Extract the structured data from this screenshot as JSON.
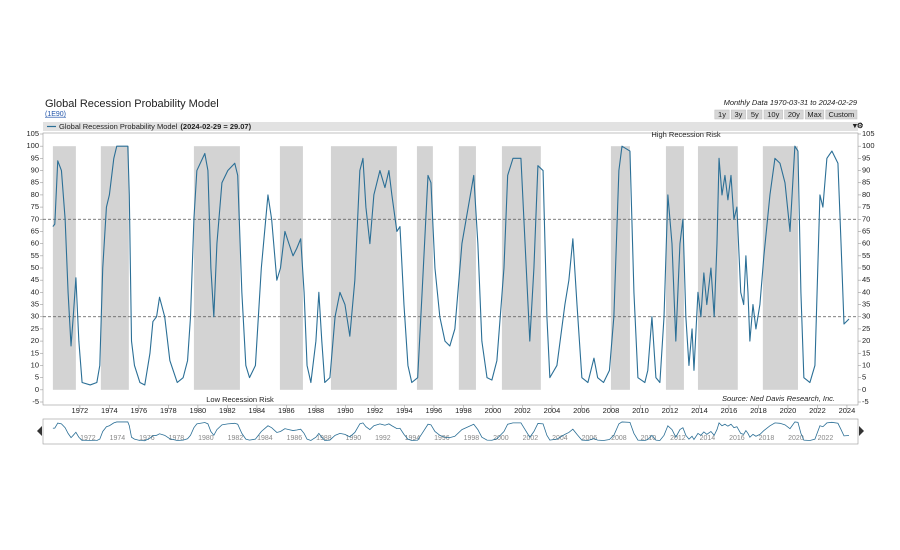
{
  "chart_data": {
    "type": "line",
    "title": "Global Recession Probability Model",
    "subtitle": "(1E90)",
    "date_range": "Monthly Data 1970-03-31 to 2024-02-29",
    "range_buttons": [
      "1y",
      "3y",
      "5y",
      "10y",
      "20y",
      "Max",
      "Custom"
    ],
    "legend_value": "(2024-02-29 = 29.07)",
    "annotations": {
      "high": "High Recession Risk",
      "low": "Low Recession Risk",
      "source": "Source: Ned Davis Research, Inc."
    },
    "xlim": [
      1969.5,
      2024.75
    ],
    "xticks": [
      1972,
      1974,
      1976,
      1978,
      1980,
      1982,
      1984,
      1986,
      1988,
      1990,
      1992,
      1994,
      1996,
      1998,
      2000,
      2002,
      2004,
      2006,
      2008,
      2010,
      2012,
      2014,
      2016,
      2018,
      2020,
      2022,
      2024
    ],
    "ylim": [
      -5,
      105
    ],
    "yticks": [
      -5,
      0,
      5,
      10,
      15,
      20,
      25,
      30,
      35,
      40,
      45,
      50,
      55,
      60,
      65,
      70,
      75,
      80,
      85,
      90,
      95,
      100,
      105
    ],
    "reference_lines": [
      70,
      30
    ],
    "shade_color": "#d3d3d3",
    "shaded_periods": [
      [
        1970.17,
        1971.73
      ],
      [
        1973.42,
        1975.32
      ],
      [
        1979.73,
        1982.85
      ],
      [
        1985.56,
        1987.12
      ],
      [
        1989.02,
        1993.49
      ],
      [
        1994.85,
        1995.93
      ],
      [
        1997.69,
        1998.85
      ],
      [
        2000.61,
        2003.25
      ],
      [
        2008.0,
        2009.29
      ],
      [
        2011.73,
        2012.95
      ],
      [
        2013.9,
        2016.6
      ],
      [
        2018.3,
        2020.68
      ]
    ],
    "x": [
      1970.17,
      1970.3,
      1970.5,
      1970.75,
      1971.0,
      1971.2,
      1971.4,
      1971.55,
      1971.73,
      1971.93,
      1972.15,
      1972.7,
      1973.15,
      1973.35,
      1973.55,
      1973.8,
      1974.0,
      1974.3,
      1974.5,
      1975.25,
      1975.35,
      1975.5,
      1975.7,
      1976.07,
      1976.4,
      1976.75,
      1976.95,
      1977.2,
      1977.4,
      1977.75,
      1978.1,
      1978.6,
      1979.0,
      1979.3,
      1979.5,
      1979.73,
      1979.93,
      1980.47,
      1980.68,
      1980.88,
      1981.08,
      1981.29,
      1981.63,
      1982.03,
      1982.5,
      1982.7,
      1982.98,
      1983.25,
      1983.5,
      1983.9,
      1984.3,
      1984.75,
      1985.0,
      1985.35,
      1985.6,
      1985.9,
      1986.17,
      1986.45,
      1986.7,
      1986.97,
      1987.2,
      1987.4,
      1987.66,
      1988.0,
      1988.2,
      1988.4,
      1988.6,
      1988.95,
      1989.3,
      1989.63,
      1989.97,
      1990.3,
      1990.64,
      1990.98,
      1991.19,
      1991.39,
      1991.66,
      1991.93,
      1992.34,
      1992.68,
      1992.95,
      1993.15,
      1993.49,
      1993.7,
      1993.97,
      1994.24,
      1994.5,
      1994.9,
      1995.2,
      1995.6,
      1995.8,
      1996.07,
      1996.4,
      1996.75,
      1997.08,
      1997.42,
      1997.9,
      1998.7,
      1998.98,
      1999.25,
      1999.6,
      1999.93,
      2000.27,
      2000.75,
      2001.0,
      2001.36,
      2001.9,
      2002.1,
      2002.5,
      2002.78,
      2003.05,
      2003.4,
      2003.66,
      2003.86,
      2004.34,
      2004.88,
      2005.15,
      2005.42,
      2005.7,
      2006.03,
      2006.44,
      2006.85,
      2007.1,
      2007.5,
      2007.9,
      2008.2,
      2008.54,
      2008.75,
      2009.29,
      2009.56,
      2009.83,
      2010.3,
      2010.5,
      2010.78,
      2011.05,
      2011.32,
      2011.6,
      2011.86,
      2012.14,
      2012.4,
      2012.68,
      2012.88,
      2013.08,
      2013.29,
      2013.5,
      2013.63,
      2013.9,
      2014.1,
      2014.3,
      2014.5,
      2014.78,
      2015.0,
      2015.19,
      2015.33,
      2015.53,
      2015.73,
      2015.93,
      2016.14,
      2016.34,
      2016.54,
      2016.8,
      2017.0,
      2017.15,
      2017.29,
      2017.42,
      2017.63,
      2017.83,
      2018.1,
      2018.37,
      2018.78,
      2019.12,
      2019.46,
      2019.8,
      2020.14,
      2020.47,
      2020.68,
      2020.88,
      2021.08,
      2021.49,
      2021.83,
      2022.17,
      2022.37,
      2022.64,
      2022.98,
      2023.39,
      2023.6,
      2023.8,
      2024.14
    ],
    "series": [
      {
        "name": "Global Recession Probability Model",
        "color": "#2b6f96",
        "values": [
          67,
          68,
          94,
          90,
          70,
          40,
          18,
          30,
          46,
          20,
          3,
          2,
          3,
          10,
          50,
          75,
          80,
          95,
          100,
          100,
          80,
          20,
          10,
          3,
          2,
          15,
          28,
          30,
          38,
          30,
          12,
          3,
          5,
          12,
          30,
          70,
          90,
          97,
          90,
          50,
          30,
          60,
          85,
          90,
          93,
          88,
          40,
          10,
          5,
          10,
          50,
          80,
          70,
          45,
          50,
          65,
          60,
          55,
          58,
          62,
          40,
          10,
          3,
          20,
          40,
          20,
          3,
          5,
          30,
          40,
          35,
          22,
          45,
          90,
          95,
          75,
          60,
          80,
          90,
          83,
          90,
          80,
          65,
          67,
          35,
          10,
          3,
          5,
          40,
          88,
          85,
          50,
          30,
          20,
          18,
          25,
          60,
          88,
          60,
          20,
          5,
          4,
          12,
          50,
          88,
          95,
          95,
          70,
          20,
          50,
          92,
          90,
          30,
          5,
          10,
          35,
          45,
          62,
          35,
          5,
          3,
          13,
          5,
          3,
          8,
          30,
          90,
          100,
          98,
          40,
          5,
          3,
          8,
          30,
          5,
          3,
          30,
          80,
          60,
          20,
          60,
          70,
          30,
          10,
          25,
          8,
          40,
          30,
          48,
          35,
          50,
          30,
          60,
          95,
          80,
          88,
          78,
          88,
          70,
          75,
          40,
          35,
          55,
          40,
          20,
          35,
          25,
          35,
          55,
          80,
          95,
          93,
          85,
          65,
          100,
          98,
          40,
          5,
          3,
          10,
          80,
          75,
          95,
          98,
          93,
          60,
          27,
          29.07
        ]
      }
    ]
  }
}
